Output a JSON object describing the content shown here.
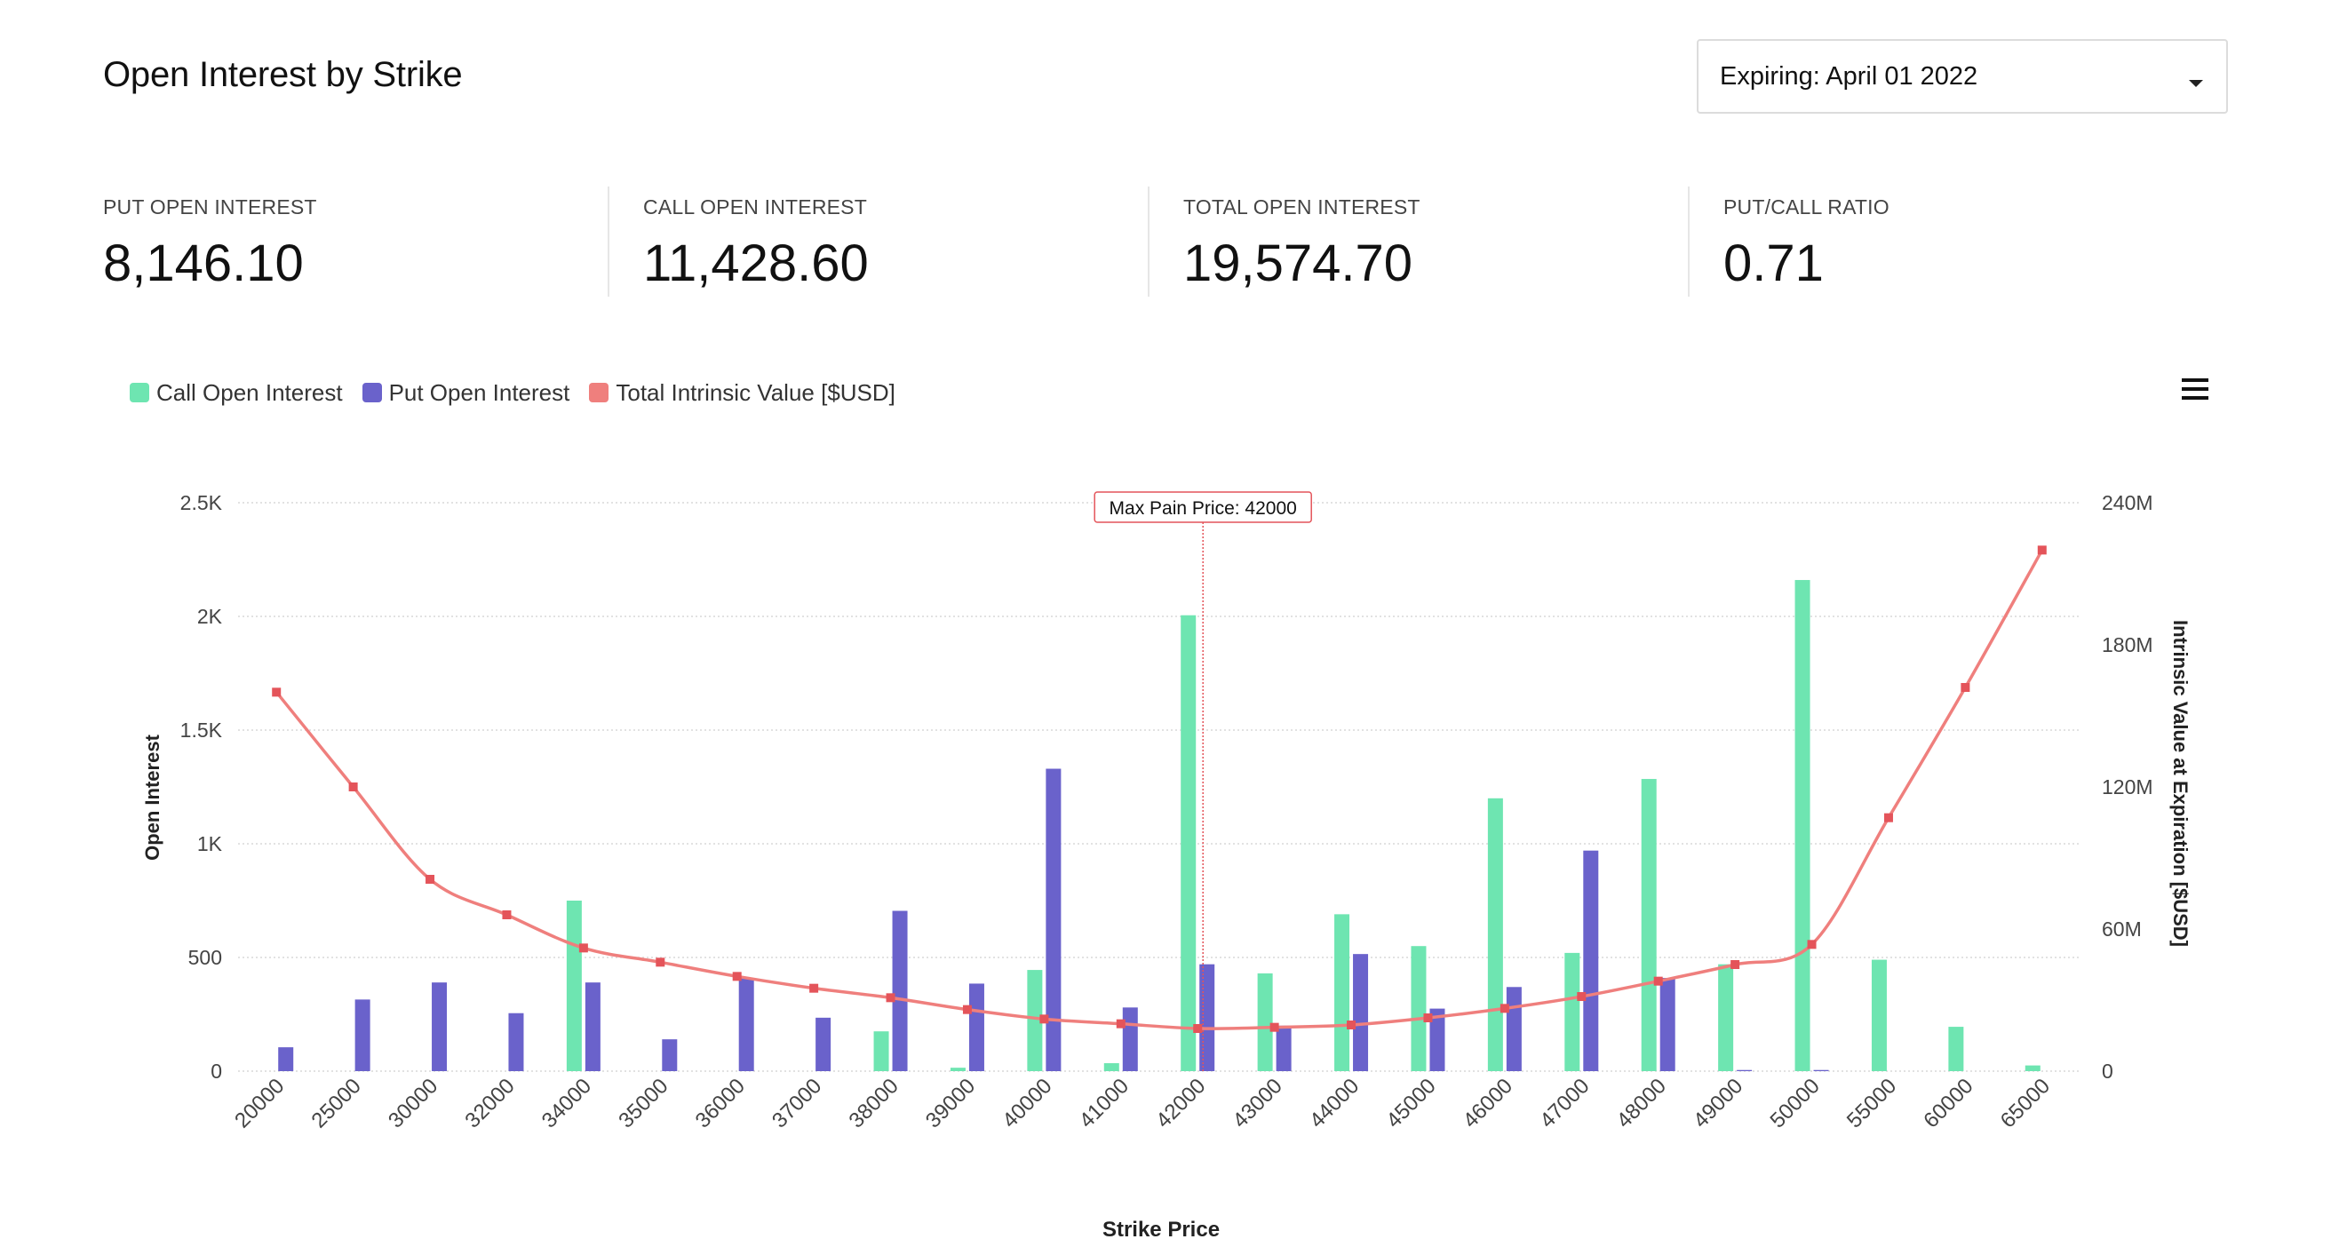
{
  "header": {
    "title": "Open Interest by Strike",
    "expiry_select": {
      "label": "Expiring: April 01 2022"
    }
  },
  "stats": [
    {
      "label": "PUT OPEN INTEREST",
      "value": "8,146.10"
    },
    {
      "label": "CALL OPEN INTEREST",
      "value": "11,428.60"
    },
    {
      "label": "TOTAL OPEN INTEREST",
      "value": "19,574.70"
    },
    {
      "label": "PUT/CALL RATIO",
      "value": "0.71"
    }
  ],
  "colors": {
    "call": "#6ee5b1",
    "put": "#6a62cb",
    "intrinsic": "#ef7f7d",
    "marker": "#e4545a"
  },
  "legend": [
    {
      "label": "Call Open Interest",
      "color": "#6ee5b1"
    },
    {
      "label": "Put Open Interest",
      "color": "#6a62cb"
    },
    {
      "label": "Total Intrinsic Value [$USD]",
      "color": "#ef7f7d"
    }
  ],
  "menu_icon": "hamburger-icon",
  "chart_data": {
    "type": "bar",
    "xlabel": "Strike Price",
    "ylabel": "Open Interest",
    "y2label": "Intrinsic Value at Expiration [$USD]",
    "ylim": [
      0,
      2500
    ],
    "y2lim": [
      0,
      240000000
    ],
    "y_ticks": [
      0,
      500,
      1000,
      1500,
      2000,
      2500
    ],
    "y_tick_labels": [
      "0",
      "500",
      "1K",
      "1.5K",
      "2K",
      "2.5K"
    ],
    "y2_ticks": [
      0,
      60000000,
      120000000,
      180000000,
      240000000
    ],
    "y2_tick_labels": [
      "0",
      "60M",
      "120M",
      "180M",
      "240M"
    ],
    "grid": true,
    "legend_position": "top-left",
    "categories": [
      "20000",
      "25000",
      "30000",
      "32000",
      "34000",
      "35000",
      "36000",
      "37000",
      "38000",
      "39000",
      "40000",
      "41000",
      "42000",
      "43000",
      "44000",
      "45000",
      "46000",
      "47000",
      "48000",
      "49000",
      "50000",
      "55000",
      "60000",
      "65000"
    ],
    "series": [
      {
        "name": "Call Open Interest",
        "kind": "bar",
        "axis": "left",
        "values": [
          0,
          0,
          0,
          0,
          750,
          0,
          0,
          0,
          175,
          15,
          445,
          35,
          2005,
          430,
          690,
          550,
          1200,
          520,
          1285,
          470,
          2160,
          490,
          195,
          25
        ]
      },
      {
        "name": "Put Open Interest",
        "kind": "bar",
        "axis": "left",
        "values": [
          105,
          315,
          390,
          255,
          390,
          140,
          410,
          235,
          705,
          385,
          1330,
          280,
          470,
          200,
          515,
          275,
          370,
          970,
          410,
          5,
          5,
          0,
          0,
          0
        ]
      },
      {
        "name": "Total Intrinsic Value [$USD]",
        "kind": "line",
        "axis": "right",
        "values": [
          160000000,
          120000000,
          81000000,
          66000000,
          52000000,
          46000000,
          40000000,
          35000000,
          31000000,
          26000000,
          22000000,
          20000000,
          18000000,
          18500000,
          19500000,
          22500000,
          26500000,
          31500000,
          38000000,
          45000000,
          53500000,
          107000000,
          162000000,
          220000000
        ]
      }
    ],
    "annotation": {
      "label": "Max Pain Price: 42000",
      "x": "42000"
    }
  }
}
